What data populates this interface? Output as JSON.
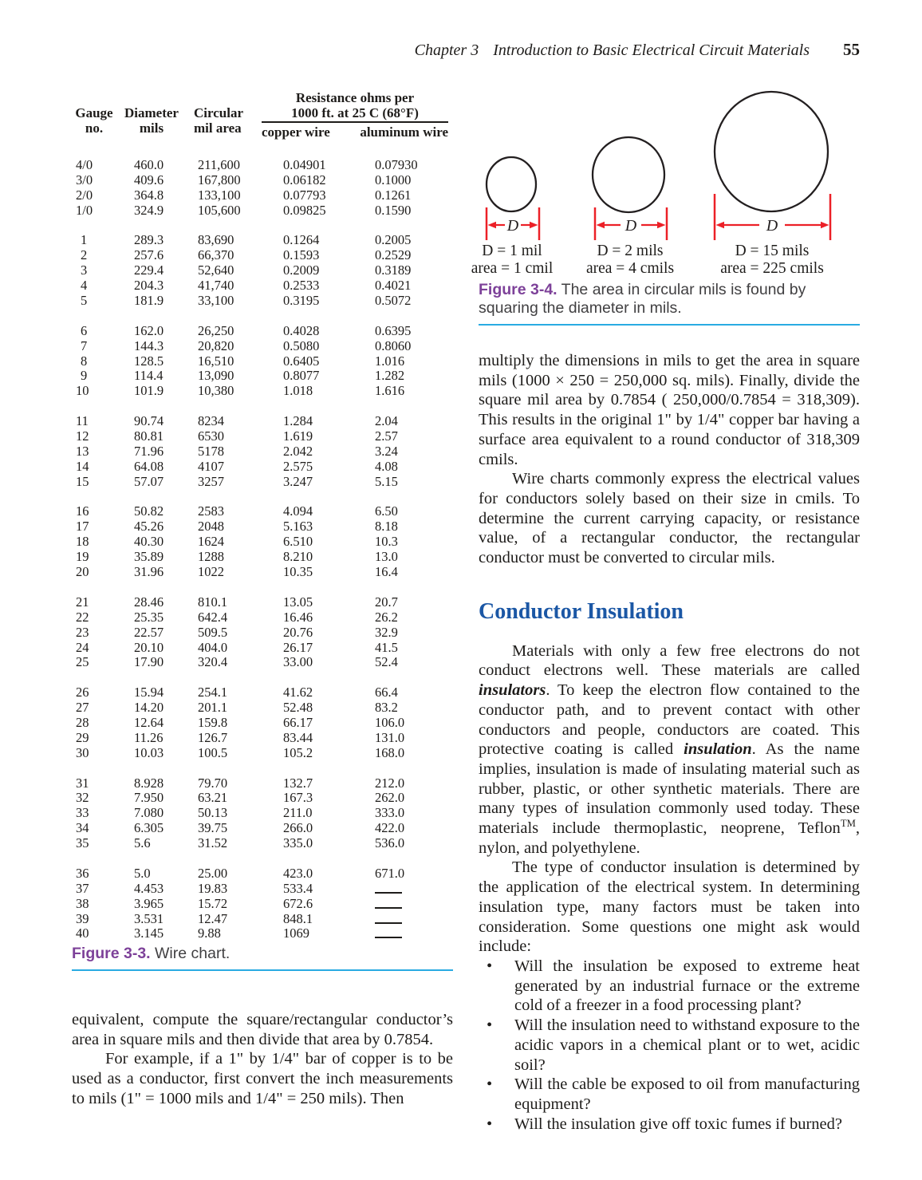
{
  "header": {
    "chapter": "Chapter 3",
    "title": "Introduction to Basic Electrical Circuit Materials",
    "page_number": "55"
  },
  "colors": {
    "figure_label_purple": "#7d4199",
    "rule_blue": "#29abe2",
    "heading_blue": "#1b57a5",
    "dimension_red": "#ec2027"
  },
  "wire_chart": {
    "caption_label": "Figure 3-3.",
    "caption_text": " Wire chart.",
    "headers": {
      "gauge_1": "Gauge",
      "gauge_2": "no.",
      "diameter_1": "Diameter",
      "diameter_2": "mils",
      "circular_1": "Circular",
      "circular_2": "mil area",
      "res_1": "Resistance ohms per",
      "res_2": "1000 ft. at 25 C (68°F)",
      "copper": "copper wire",
      "aluminum": "aluminum wire"
    },
    "groups": [
      [
        [
          "4/0",
          "460.0",
          "211,600",
          "0.04901",
          "0.07930"
        ],
        [
          "3/0",
          "409.6",
          "167,800",
          "0.06182",
          "0.1000"
        ],
        [
          "2/0",
          "364.8",
          "133,100",
          "0.07793",
          "0.1261"
        ],
        [
          "1/0",
          "324.9",
          "105,600",
          "0.09825",
          "0.1590"
        ]
      ],
      [
        [
          "1",
          "289.3",
          "83,690",
          "0.1264",
          "0.2005"
        ],
        [
          "2",
          "257.6",
          "66,370",
          "0.1593",
          "0.2529"
        ],
        [
          "3",
          "229.4",
          "52,640",
          "0.2009",
          "0.3189"
        ],
        [
          "4",
          "204.3",
          "41,740",
          "0.2533",
          "0.4021"
        ],
        [
          "5",
          "181.9",
          "33,100",
          "0.3195",
          "0.5072"
        ]
      ],
      [
        [
          "6",
          "162.0",
          "26,250",
          "0.4028",
          "0.6395"
        ],
        [
          "7",
          "144.3",
          "20,820",
          "0.5080",
          "0.8060"
        ],
        [
          "8",
          "128.5",
          "16,510",
          "0.6405",
          "1.016"
        ],
        [
          "9",
          "114.4",
          "13,090",
          "0.8077",
          "1.282"
        ],
        [
          "10",
          "101.9",
          "10,380",
          "1.018",
          "1.616"
        ]
      ],
      [
        [
          "11",
          "90.74",
          "8234",
          "1.284",
          "2.04"
        ],
        [
          "12",
          "80.81",
          "6530",
          "1.619",
          "2.57"
        ],
        [
          "13",
          "71.96",
          "5178",
          "2.042",
          "3.24"
        ],
        [
          "14",
          "64.08",
          "4107",
          "2.575",
          "4.08"
        ],
        [
          "15",
          "57.07",
          "3257",
          "3.247",
          "5.15"
        ]
      ],
      [
        [
          "16",
          "50.82",
          "2583",
          "4.094",
          "6.50"
        ],
        [
          "17",
          "45.26",
          "2048",
          "5.163",
          "8.18"
        ],
        [
          "18",
          "40.30",
          "1624",
          "6.510",
          "10.3"
        ],
        [
          "19",
          "35.89",
          "1288",
          "8.210",
          "13.0"
        ],
        [
          "20",
          "31.96",
          "1022",
          "10.35",
          "16.4"
        ]
      ],
      [
        [
          "21",
          "28.46",
          "810.1",
          "13.05",
          "20.7"
        ],
        [
          "22",
          "25.35",
          "642.4",
          "16.46",
          "26.2"
        ],
        [
          "23",
          "22.57",
          "509.5",
          "20.76",
          "32.9"
        ],
        [
          "24",
          "20.10",
          "404.0",
          "26.17",
          "41.5"
        ],
        [
          "25",
          "17.90",
          "320.4",
          "33.00",
          "52.4"
        ]
      ],
      [
        [
          "26",
          "15.94",
          "254.1",
          "41.62",
          "66.4"
        ],
        [
          "27",
          "14.20",
          "201.1",
          "52.48",
          "83.2"
        ],
        [
          "28",
          "12.64",
          "159.8",
          "66.17",
          "106.0"
        ],
        [
          "29",
          "11.26",
          "126.7",
          "83.44",
          "131.0"
        ],
        [
          "30",
          "10.03",
          "100.5",
          "105.2",
          "168.0"
        ]
      ],
      [
        [
          "31",
          "8.928",
          "79.70",
          "132.7",
          "212.0"
        ],
        [
          "32",
          "7.950",
          "63.21",
          "167.3",
          "262.0"
        ],
        [
          "33",
          "7.080",
          "50.13",
          "211.0",
          "333.0"
        ],
        [
          "34",
          "6.305",
          "39.75",
          "266.0",
          "422.0"
        ],
        [
          "35",
          "5.6",
          "31.52",
          "335.0",
          "536.0"
        ]
      ],
      [
        [
          "36",
          "5.0",
          "25.00",
          "423.0",
          "671.0"
        ],
        [
          "37",
          "4.453",
          "19.83",
          "533.4",
          "____"
        ],
        [
          "38",
          "3.965",
          "15.72",
          "672.6",
          "____"
        ],
        [
          "39",
          "3.531",
          "12.47",
          "848.1",
          "____"
        ],
        [
          "40",
          "3.145",
          "9.88",
          "1069",
          "____"
        ]
      ]
    ]
  },
  "figure34": {
    "d_symbol": "D",
    "items": [
      {
        "d_line": "D = 1 mil",
        "area_line": "area = 1 cmil"
      },
      {
        "d_line": "D = 2 mils",
        "area_line": "area = 4 cmils"
      },
      {
        "d_line": "D = 15 mils",
        "area_line": "area = 225 cmils"
      }
    ],
    "caption_label": "Figure 3-4.",
    "caption_text": " The area in circular mils is found by squaring the diameter in mils."
  },
  "left_column": {
    "paragraphs": [
      {
        "indent": false,
        "segments": [
          {
            "t": "equivalent, compute the square/rectangular conductor’s area in square mils and then divide that area by 0.7854."
          }
        ]
      },
      {
        "indent": true,
        "segments": [
          {
            "t": "For example, if a 1\" by 1/4\" bar of copper is to be used as a conductor, first convert the inch measurements to mils (1\" = 1000 mils and 1/4\" = 250 mils). Then"
          }
        ]
      }
    ]
  },
  "right_column": {
    "paragraphs_top": [
      {
        "indent": false,
        "segments": [
          {
            "t": "multiply the dimensions in mils to get the area in square mils (1000 × 250 = 250,000 sq. mils). Finally, divide the square mil area by 0.7854 ( 250,000/0.7854 = 318,309). This results in the original 1\" by 1/4\" copper bar having a surface area equivalent to a round conductor of 318,309 cmils."
          }
        ]
      },
      {
        "indent": true,
        "segments": [
          {
            "t": "Wire charts commonly express the electrical values for conductors solely based on their size in cmils. To determine the current carrying capacity, or resistance value, of a rectangular conductor, the rectangular conductor must be converted to circular mils."
          }
        ]
      }
    ],
    "heading": "Conductor Insulation",
    "paragraphs_mid": [
      {
        "indent": true,
        "segments": [
          {
            "t": "Materials with only a few free electrons do not conduct electrons well. These materials are called "
          },
          {
            "t": "insulators",
            "s": "bi"
          },
          {
            "t": ". To keep the electron flow contained to the conductor path, and to prevent contact with other conductors and people, conductors are coated. This protective coating is called "
          },
          {
            "t": "insulation",
            "s": "bi"
          },
          {
            "t": ". As the name implies, insulation is made of insulating material such as rubber, plastic, or other synthetic materials. There are many types of insulation commonly used today. These materials include thermoplastic, neoprene, Teflon"
          },
          {
            "t": "TM",
            "s": "sup"
          },
          {
            "t": ", nylon, and polyethylene."
          }
        ]
      },
      {
        "indent": true,
        "segments": [
          {
            "t": "The type of conductor insulation is determined by the application of the electrical system. In determining insulation type, many factors must be taken into consideration. Some questions one might ask would include:"
          }
        ]
      }
    ],
    "bullet_char": "•",
    "bullets": [
      "Will the insulation be exposed to extreme heat generated by an industrial furnace or the extreme cold of a freezer in a food processing plant?",
      "Will the insulation need to withstand exposure to the acidic vapors in a chemical plant or to wet, acidic soil?",
      "Will the cable be exposed to oil from manufacturing equipment?",
      "Will the insulation give off toxic fumes if burned?"
    ]
  }
}
